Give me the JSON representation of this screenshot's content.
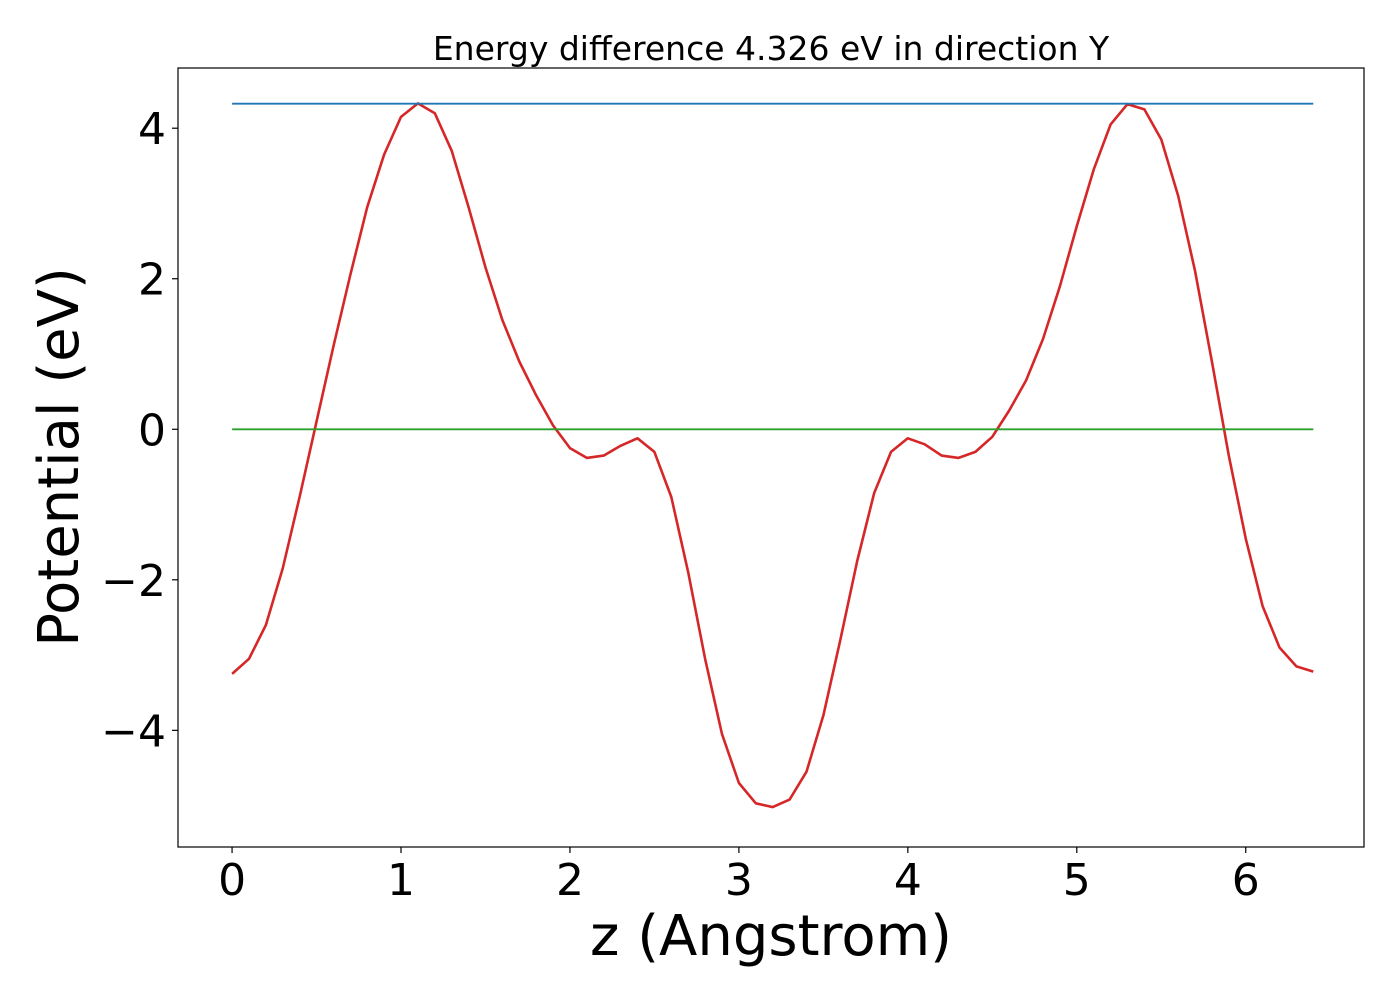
{
  "chart_data": {
    "type": "line",
    "title": "Energy difference 4.326 eV in direction Y",
    "xlabel": "z (Angstrom)",
    "ylabel": "Potential (eV)",
    "xlim": [
      -0.32,
      6.7
    ],
    "ylim": [
      -5.55,
      4.8
    ],
    "xticks": [
      0,
      1,
      2,
      3,
      4,
      5,
      6
    ],
    "xtick_labels": [
      "0",
      "1",
      "2",
      "3",
      "4",
      "5",
      "6"
    ],
    "yticks": [
      4,
      2,
      0,
      -2,
      -4
    ],
    "ytick_labels": [
      "4",
      "2",
      "0",
      "−2",
      "−4"
    ],
    "grid": false,
    "series": [
      {
        "color": "#d62728",
        "points": [
          [
            0.0,
            -3.25
          ],
          [
            0.1,
            -3.05
          ],
          [
            0.2,
            -2.6
          ],
          [
            0.3,
            -1.85
          ],
          [
            0.4,
            -0.9
          ],
          [
            0.5,
            0.1
          ],
          [
            0.6,
            1.1
          ],
          [
            0.7,
            2.05
          ],
          [
            0.8,
            2.95
          ],
          [
            0.9,
            3.65
          ],
          [
            1.0,
            4.15
          ],
          [
            1.1,
            4.33
          ],
          [
            1.2,
            4.2
          ],
          [
            1.3,
            3.7
          ],
          [
            1.4,
            2.95
          ],
          [
            1.5,
            2.15
          ],
          [
            1.6,
            1.45
          ],
          [
            1.7,
            0.9
          ],
          [
            1.8,
            0.45
          ],
          [
            1.9,
            0.05
          ],
          [
            2.0,
            -0.25
          ],
          [
            2.1,
            -0.38
          ],
          [
            2.2,
            -0.35
          ],
          [
            2.3,
            -0.22
          ],
          [
            2.4,
            -0.12
          ],
          [
            2.5,
            -0.3
          ],
          [
            2.6,
            -0.9
          ],
          [
            2.7,
            -1.9
          ],
          [
            2.8,
            -3.05
          ],
          [
            2.9,
            -4.05
          ],
          [
            3.0,
            -4.7
          ],
          [
            3.1,
            -4.97
          ],
          [
            3.2,
            -5.02
          ],
          [
            3.3,
            -4.92
          ],
          [
            3.4,
            -4.55
          ],
          [
            3.5,
            -3.8
          ],
          [
            3.6,
            -2.8
          ],
          [
            3.7,
            -1.75
          ],
          [
            3.8,
            -0.85
          ],
          [
            3.9,
            -0.3
          ],
          [
            4.0,
            -0.12
          ],
          [
            4.1,
            -0.2
          ],
          [
            4.2,
            -0.35
          ],
          [
            4.3,
            -0.38
          ],
          [
            4.4,
            -0.3
          ],
          [
            4.5,
            -0.1
          ],
          [
            4.6,
            0.25
          ],
          [
            4.7,
            0.65
          ],
          [
            4.8,
            1.2
          ],
          [
            4.9,
            1.9
          ],
          [
            5.0,
            2.7
          ],
          [
            5.1,
            3.45
          ],
          [
            5.2,
            4.05
          ],
          [
            5.3,
            4.32
          ],
          [
            5.4,
            4.25
          ],
          [
            5.5,
            3.85
          ],
          [
            5.6,
            3.1
          ],
          [
            5.7,
            2.1
          ],
          [
            5.8,
            0.9
          ],
          [
            5.9,
            -0.35
          ],
          [
            6.0,
            -1.45
          ],
          [
            6.1,
            -2.35
          ],
          [
            6.2,
            -2.9
          ],
          [
            6.3,
            -3.15
          ],
          [
            6.4,
            -3.22
          ]
        ]
      },
      {
        "color": "#1f77b4",
        "points": [
          [
            0.0,
            4.326
          ],
          [
            6.4,
            4.326
          ]
        ]
      },
      {
        "color": "#2ca02c",
        "points": [
          [
            0.0,
            0.0
          ],
          [
            6.4,
            0.0
          ]
        ]
      }
    ]
  }
}
